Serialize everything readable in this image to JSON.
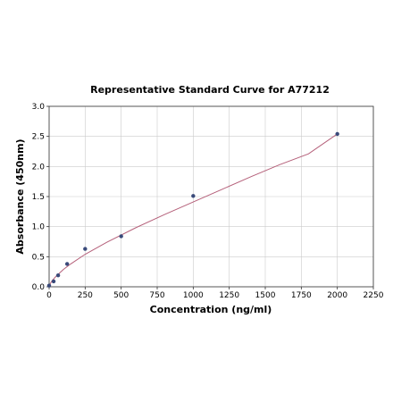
{
  "chart_data": {
    "type": "scatter",
    "title": "Representative Standard Curve for A77212",
    "xlabel": "Concentration (ng/ml)",
    "ylabel": "Absorbance (450nm)",
    "xlim": [
      0,
      2250
    ],
    "ylim": [
      0,
      3.0
    ],
    "xticks": [
      0,
      250,
      500,
      750,
      1000,
      1250,
      1500,
      1750,
      2000,
      2250
    ],
    "yticks": [
      0.0,
      0.5,
      1.0,
      1.5,
      2.0,
      2.5,
      3.0
    ],
    "xtick_labels": [
      "0",
      "250",
      "500",
      "750",
      "1000",
      "1250",
      "1500",
      "1750",
      "2000",
      "2250"
    ],
    "ytick_labels": [
      "0.0",
      "0.5",
      "1.0",
      "1.5",
      "2.0",
      "2.5",
      "3.0"
    ],
    "grid": true,
    "series": [
      {
        "points": [
          {
            "x": 0,
            "y": 0.02
          },
          {
            "x": 31.25,
            "y": 0.09
          },
          {
            "x": 62.5,
            "y": 0.19
          },
          {
            "x": 125,
            "y": 0.38
          },
          {
            "x": 250,
            "y": 0.63
          },
          {
            "x": 500,
            "y": 0.84
          },
          {
            "x": 1000,
            "y": 1.51
          },
          {
            "x": 2000,
            "y": 2.54
          }
        ],
        "color": "#3a4a7a"
      }
    ],
    "fit_curve": {
      "color": "#b5607a",
      "x": [
        0,
        20,
        50,
        100,
        150,
        250,
        400,
        600,
        800,
        1000,
        1200,
        1400,
        1600,
        1800,
        2000
      ],
      "y": [
        0.02,
        0.1,
        0.18,
        0.29,
        0.38,
        0.54,
        0.74,
        0.98,
        1.2,
        1.41,
        1.62,
        1.83,
        2.03,
        2.21,
        2.54
      ]
    }
  }
}
